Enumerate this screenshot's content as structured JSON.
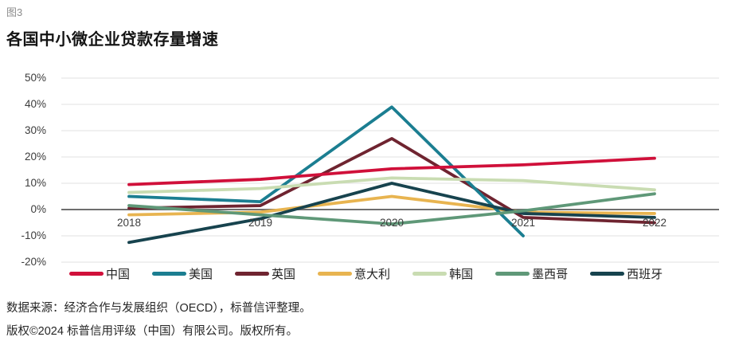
{
  "figure": {
    "label": "图3",
    "title": "各国中小微企业贷款存量增速"
  },
  "chart_data": {
    "type": "line",
    "title": "各国中小微企业贷款存量增速",
    "xlabel": "",
    "ylabel": "",
    "categories": [
      "2018",
      "2019",
      "2020",
      "2021",
      "2022"
    ],
    "series": [
      {
        "name": "中国",
        "color": "#d0103a",
        "values": [
          9.5,
          11.5,
          15.5,
          17,
          19.5
        ]
      },
      {
        "name": "美国",
        "color": "#1b7e91",
        "values": [
          5,
          3,
          39,
          -10,
          null
        ]
      },
      {
        "name": "英国",
        "color": "#6f2430",
        "values": [
          0.5,
          1.5,
          27,
          -3,
          -5
        ]
      },
      {
        "name": "意大利",
        "color": "#e8b450",
        "values": [
          -2,
          -1,
          5,
          -1,
          -1.5
        ]
      },
      {
        "name": "韩国",
        "color": "#c9dcb2",
        "values": [
          6.5,
          8,
          12,
          11,
          7.5
        ]
      },
      {
        "name": "墨西哥",
        "color": "#5f9878",
        "values": [
          1.5,
          -2,
          -5.5,
          -0.5,
          6
        ]
      },
      {
        "name": "西班牙",
        "color": "#17434e",
        "values": [
          -12.5,
          -3.5,
          10,
          -1.5,
          -3
        ]
      }
    ],
    "yticks": [
      {
        "value": 50,
        "label": "50%"
      },
      {
        "value": 40,
        "label": "40%"
      },
      {
        "value": 30,
        "label": "30%"
      },
      {
        "value": 20,
        "label": "20%"
      },
      {
        "value": 10,
        "label": "10%"
      },
      {
        "value": 0,
        "label": "0%"
      },
      {
        "value": -10,
        "label": "-10%"
      },
      {
        "value": -20,
        "label": "-20%"
      }
    ],
    "ylim": [
      -20,
      50
    ],
    "grid": true,
    "legend_position": "bottom"
  },
  "colors": {
    "grid": "#e7e7e7",
    "zero_line": "#6e6e6e"
  },
  "footer": {
    "source": "数据来源：经济合作与发展组织（OECD），标普信评整理。",
    "copyright": "版权©2024 标普信用评级（中国）有限公司。版权所有。"
  }
}
